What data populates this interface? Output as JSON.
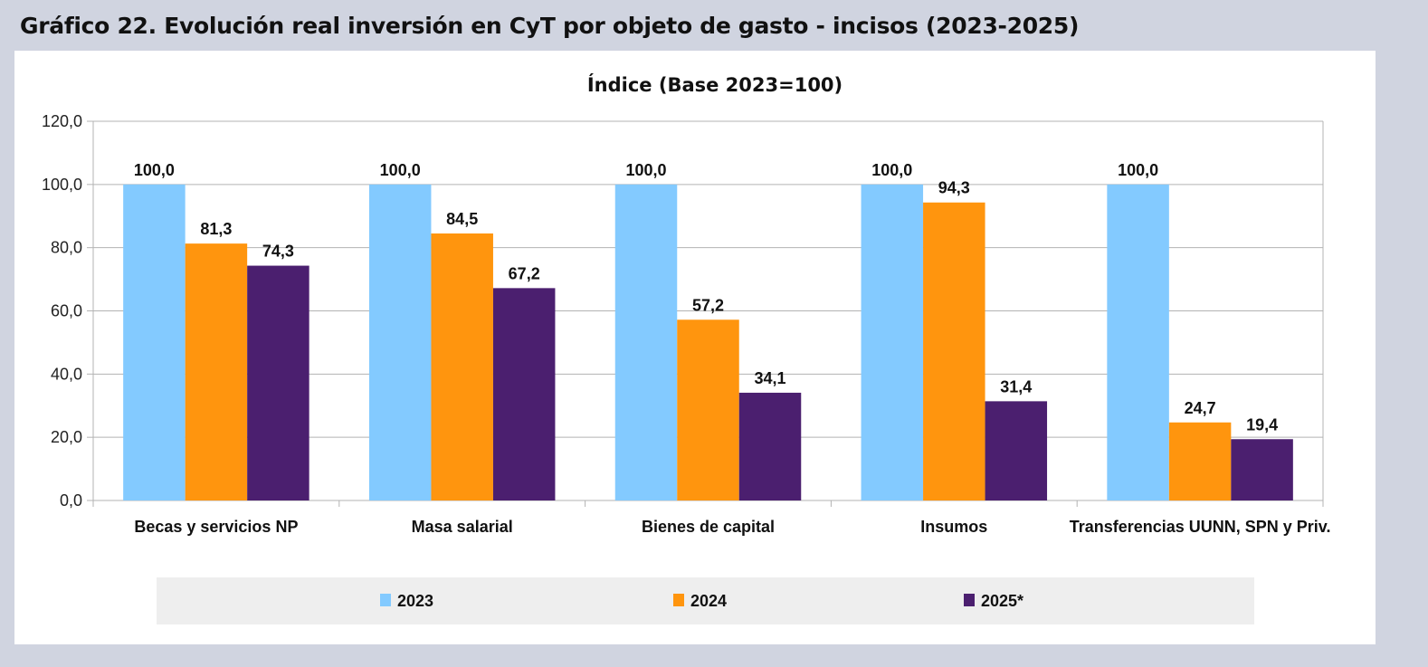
{
  "figure_title": "Gráfico 22. Evolución real inversión en CyT por objeto de gasto - incisos (2023-2025)",
  "chart_data": {
    "type": "bar",
    "title": "Índice (Base 2023=100)",
    "xlabel": "",
    "ylabel": "",
    "ylim": [
      0,
      120
    ],
    "yticks": [
      0,
      20,
      40,
      60,
      80,
      100,
      120
    ],
    "ytick_labels": [
      "0,0",
      "20,0",
      "40,0",
      "60,0",
      "80,0",
      "100,0",
      "120,0"
    ],
    "grid": true,
    "legend_position": "bottom",
    "categories": [
      "Becas y servicios NP",
      "Masa salarial",
      "Bienes de capital",
      "Insumos",
      "Transferencias UUNN, SPN y Priv."
    ],
    "series": [
      {
        "name": "2023",
        "color": "#83caff",
        "values": [
          100.0,
          100.0,
          100.0,
          100.0,
          100.0
        ],
        "labels": [
          "100,0",
          "100,0",
          "100,0",
          "100,0",
          "100,0"
        ]
      },
      {
        "name": "2024",
        "color": "#ff950e",
        "values": [
          81.3,
          84.5,
          57.2,
          94.3,
          24.7
        ],
        "labels": [
          "81,3",
          "84,5",
          "57,2",
          "94,3",
          "24,7"
        ]
      },
      {
        "name": "2025*",
        "color": "#4b1f6f",
        "values": [
          74.3,
          67.2,
          34.1,
          31.4,
          19.4
        ],
        "labels": [
          "74,3",
          "67,2",
          "34,1",
          "31,4",
          "19,4"
        ]
      }
    ]
  }
}
